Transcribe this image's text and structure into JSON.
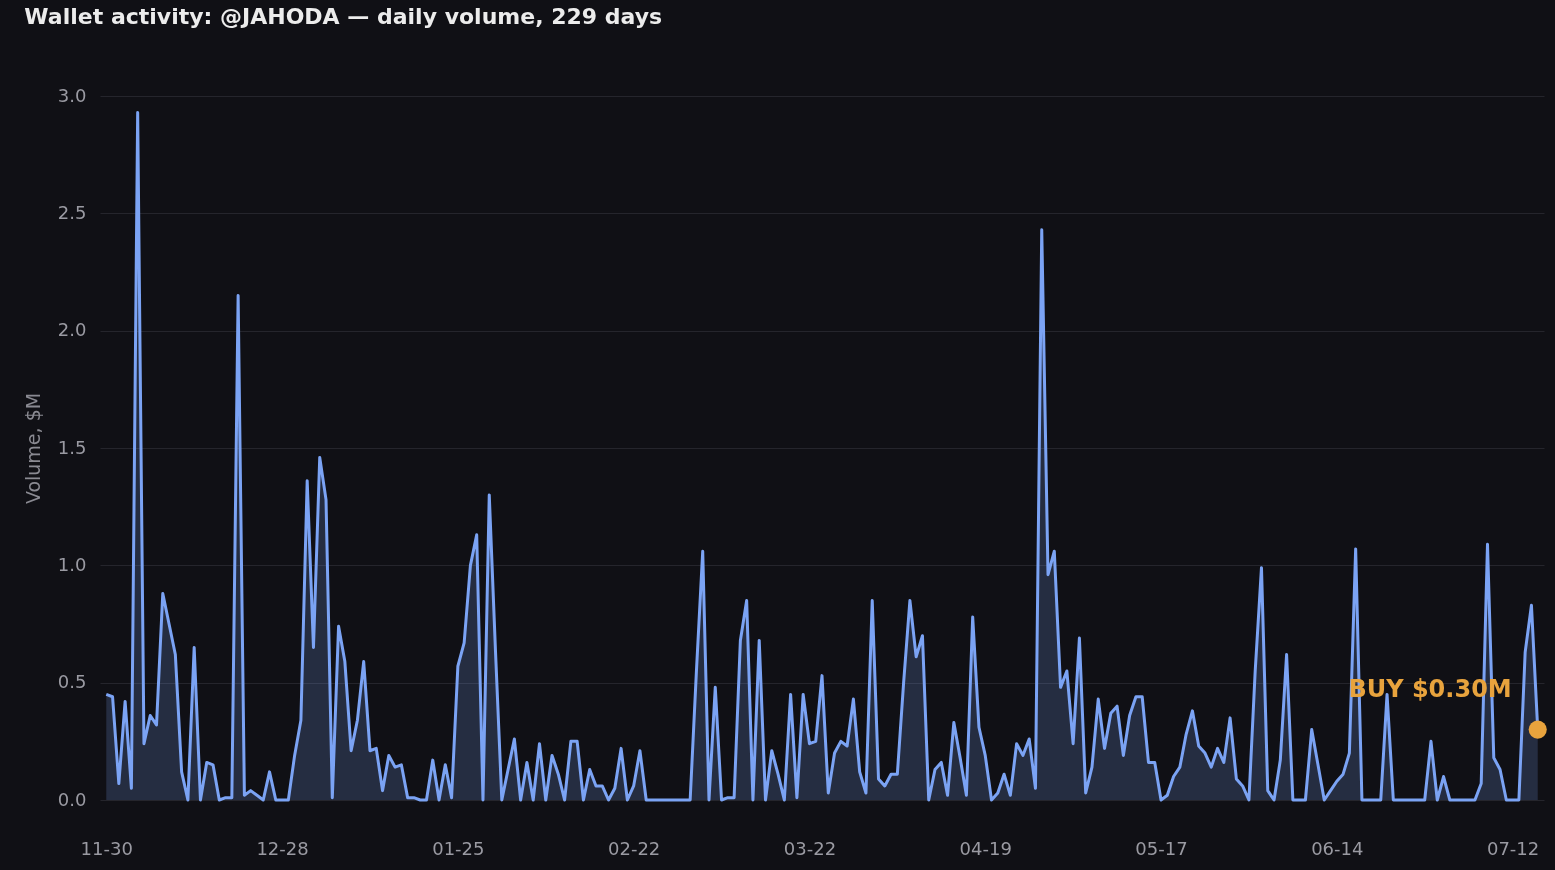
{
  "chart_data": {
    "type": "area",
    "title": "Wallet activity: @JAHODA — daily volume, 229 days",
    "ylabel": "Volume, $M",
    "categories": [
      "11-30",
      null,
      null,
      null,
      null,
      null,
      null,
      null,
      null,
      null,
      null,
      null,
      null,
      null,
      null,
      null,
      null,
      null,
      null,
      null,
      null,
      null,
      null,
      null,
      null,
      null,
      null,
      null,
      "12-28",
      null,
      null,
      null,
      null,
      null,
      null,
      null,
      null,
      null,
      null,
      null,
      null,
      null,
      null,
      null,
      null,
      null,
      null,
      null,
      null,
      null,
      null,
      null,
      null,
      null,
      null,
      null,
      "01-25",
      null,
      null,
      null,
      null,
      null,
      null,
      null,
      null,
      null,
      null,
      null,
      null,
      null,
      null,
      null,
      null,
      null,
      null,
      null,
      null,
      null,
      null,
      null,
      null,
      null,
      null,
      null,
      "02-22",
      null,
      null,
      null,
      null,
      null,
      null,
      null,
      null,
      null,
      null,
      null,
      null,
      null,
      null,
      null,
      null,
      null,
      null,
      null,
      null,
      null,
      null,
      null,
      null,
      null,
      null,
      null,
      "03-22",
      null,
      null,
      null,
      null,
      null,
      null,
      null,
      null,
      null,
      null,
      null,
      null,
      null,
      null,
      null,
      null,
      null,
      null,
      null,
      null,
      null,
      null,
      null,
      null,
      null,
      null,
      null,
      "04-19",
      null,
      null,
      null,
      null,
      null,
      null,
      null,
      null,
      null,
      null,
      null,
      null,
      null,
      null,
      null,
      null,
      null,
      null,
      null,
      null,
      null,
      null,
      null,
      null,
      null,
      null,
      null,
      "05-17",
      null,
      null,
      null,
      null,
      null,
      null,
      null,
      null,
      null,
      null,
      null,
      null,
      null,
      null,
      null,
      null,
      null,
      null,
      null,
      null,
      null,
      null,
      null,
      null,
      null,
      null,
      null,
      "06-14",
      null,
      null,
      null,
      null,
      null,
      null,
      null,
      null,
      null,
      null,
      null,
      null,
      null,
      null,
      null,
      null,
      null,
      null,
      null,
      null,
      null,
      null,
      null,
      null,
      null,
      null,
      null,
      "07-12",
      null,
      null,
      null,
      null
    ],
    "series": [
      {
        "color": "#7ba3f4",
        "values": [
          0.45,
          0.44,
          0.07,
          0.42,
          0.05,
          2.93,
          0.24,
          0.36,
          0.32,
          0.88,
          0.75,
          0.62,
          0.12,
          0,
          0.65,
          0,
          0.16,
          0.15,
          0,
          0.01,
          0.01,
          2.15,
          0.02,
          0.04,
          0.02,
          0,
          0.12,
          0,
          0,
          0,
          0.19,
          0.34,
          1.36,
          0.65,
          1.46,
          1.28,
          0.01,
          0.74,
          0.59,
          0.21,
          0.34,
          0.59,
          0.21,
          0.22,
          0.04,
          0.19,
          0.14,
          0.15,
          0.01,
          0.01,
          0,
          0,
          0.17,
          0,
          0.15,
          0.01,
          0.57,
          0.67,
          1.0,
          1.13,
          0,
          1.3,
          0.63,
          0,
          0.13,
          0.26,
          0,
          0.16,
          0,
          0.24,
          0,
          0.19,
          0.11,
          0,
          0.25,
          0.25,
          0,
          0.13,
          0.06,
          0.06,
          0,
          0.05,
          0.22,
          0,
          0.06,
          0.21,
          0,
          0,
          0,
          0,
          0,
          0,
          0,
          0,
          0.55,
          1.06,
          0,
          0.48,
          0,
          0.01,
          0.01,
          0.68,
          0.85,
          0,
          0.68,
          0,
          0.21,
          0.11,
          0,
          0.45,
          0.01,
          0.45,
          0.24,
          0.25,
          0.53,
          0.03,
          0.2,
          0.25,
          0.23,
          0.43,
          0.12,
          0.03,
          0.85,
          0.09,
          0.06,
          0.11,
          0.11,
          0.5,
          0.85,
          0.61,
          0.7,
          0,
          0.13,
          0.16,
          0.02,
          0.33,
          0.18,
          0.02,
          0.78,
          0.31,
          0.19,
          0,
          0.03,
          0.11,
          0.02,
          0.24,
          0.19,
          0.26,
          0.05,
          2.43,
          0.96,
          1.06,
          0.48,
          0.55,
          0.24,
          0.69,
          0.03,
          0.14,
          0.43,
          0.22,
          0.37,
          0.4,
          0.19,
          0.36,
          0.44,
          0.44,
          0.16,
          0.16,
          0,
          0.02,
          0.1,
          0.14,
          0.28,
          0.38,
          0.23,
          0.2,
          0.14,
          0.22,
          0.16,
          0.35,
          0.09,
          0.06,
          0,
          0.55,
          0.99,
          0.04,
          0,
          0.17,
          0.62,
          0,
          0,
          0,
          0.3,
          0.15,
          0,
          0.04,
          0.08,
          0.11,
          0.2,
          1.07,
          0,
          0,
          0,
          0,
          0.45,
          0,
          0,
          0,
          0,
          0,
          0,
          0.25,
          0,
          0.1,
          0,
          0,
          0,
          0,
          0,
          0.07,
          1.09,
          0.18,
          0.13,
          0,
          0,
          0,
          0.63,
          0.83,
          0.3
        ]
      },
      {
        "type": "scatter",
        "color": "#e8a33d",
        "values": [
          null,
          null,
          null,
          null,
          null,
          null,
          null,
          null,
          null,
          null,
          null,
          null,
          null,
          null,
          null,
          null,
          null,
          null,
          null,
          null,
          null,
          null,
          null,
          null,
          null,
          null,
          null,
          null,
          null,
          null,
          null,
          null,
          null,
          null,
          null,
          null,
          null,
          null,
          null,
          null,
          null,
          null,
          null,
          null,
          null,
          null,
          null,
          null,
          null,
          null,
          null,
          null,
          null,
          null,
          null,
          null,
          null,
          null,
          null,
          null,
          null,
          null,
          null,
          null,
          null,
          null,
          null,
          null,
          null,
          null,
          null,
          null,
          null,
          null,
          null,
          null,
          null,
          null,
          null,
          null,
          null,
          null,
          null,
          null,
          null,
          null,
          null,
          null,
          null,
          null,
          null,
          null,
          null,
          null,
          null,
          null,
          null,
          null,
          null,
          null,
          null,
          null,
          null,
          null,
          null,
          null,
          null,
          null,
          null,
          null,
          null,
          null,
          null,
          null,
          null,
          null,
          null,
          null,
          null,
          null,
          null,
          null,
          null,
          null,
          null,
          null,
          null,
          null,
          null,
          null,
          null,
          null,
          null,
          null,
          null,
          null,
          null,
          null,
          null,
          null,
          null,
          null,
          null,
          null,
          null,
          null,
          null,
          null,
          null,
          null,
          null,
          null,
          null,
          null,
          null,
          null,
          null,
          null,
          null,
          null,
          null,
          null,
          null,
          null,
          null,
          null,
          null,
          null,
          null,
          null,
          null,
          null,
          null,
          null,
          null,
          null,
          null,
          null,
          null,
          null,
          null,
          null,
          null,
          null,
          null,
          null,
          null,
          null,
          null,
          null,
          null,
          null,
          null,
          null,
          null,
          null,
          null,
          null,
          null,
          null,
          null,
          null,
          null,
          null,
          null,
          null,
          null,
          null,
          null,
          null,
          null,
          null,
          null,
          null,
          null,
          null,
          null,
          null,
          null,
          null,
          null,
          null,
          null,
          null,
          null,
          null,
          null,
          null,
          0.3
        ]
      }
    ],
    "annotations": [
      "BUY $0.30M"
    ],
    "ylim": [
      0,
      3
    ],
    "yticks": [
      {
        "value": 0,
        "label": "0.0"
      },
      {
        "value": 0.5,
        "label": "0.5"
      },
      {
        "value": 1,
        "label": "1.0"
      },
      {
        "value": 1.5,
        "label": "1.5"
      },
      {
        "value": 2,
        "label": "2.0"
      },
      {
        "value": 2.5,
        "label": "2.5"
      },
      {
        "value": 3,
        "label": "3.0"
      }
    ],
    "grid": "y",
    "line_style": "solid"
  }
}
